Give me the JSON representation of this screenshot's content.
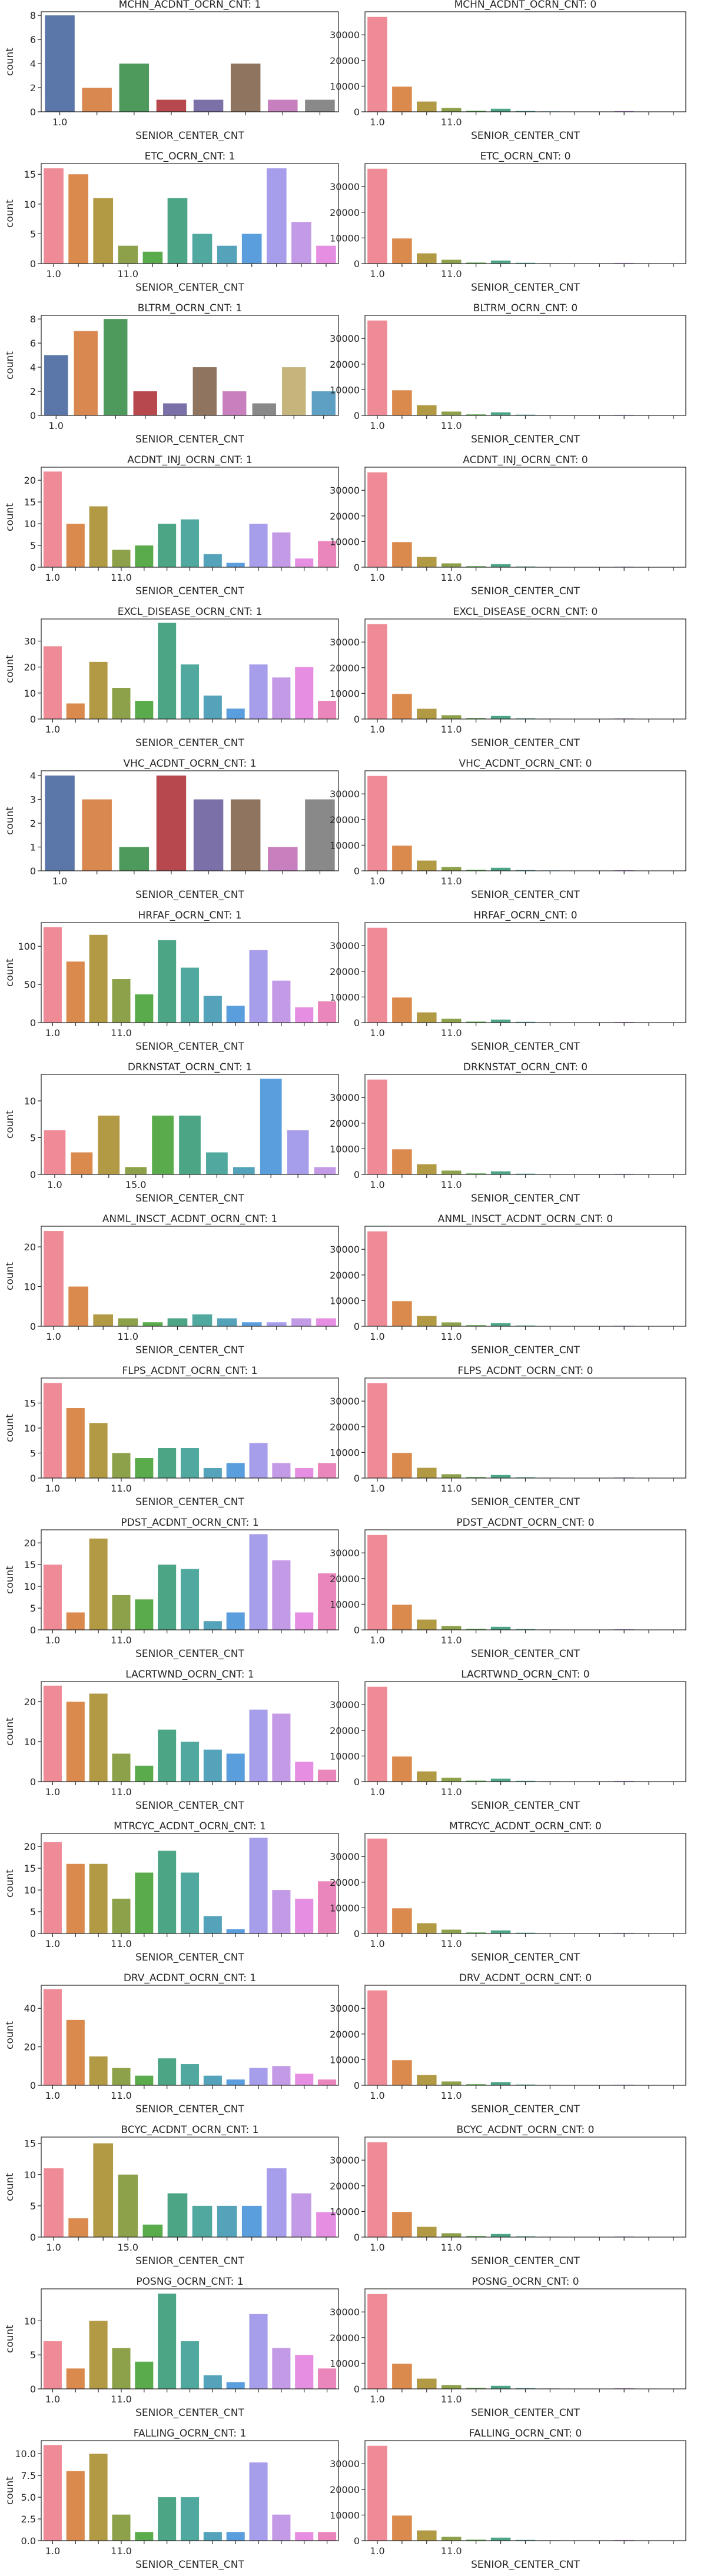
{
  "figure": {
    "xlabel": "SENIOR_CENTER_CNT",
    "ylabel": "count"
  },
  "chart_data": [
    {
      "type": "bar",
      "title": "MCHN_ACDNT_OCRN_CNT: 1",
      "xticks": [
        "1.0"
      ],
      "values": [
        8,
        2,
        4,
        1,
        1,
        4,
        1,
        1
      ],
      "colors": [
        "#5B76A8",
        "#D98950",
        "#4E9A5C",
        "#B7484D",
        "#7C70A8",
        "#8F7460",
        "#C77FBE",
        "#898989"
      ],
      "ylim": [
        0,
        8.3
      ],
      "yticks": [
        0,
        2,
        4,
        6,
        8
      ]
    },
    {
      "type": "bar",
      "title": "MCHN_ACDNT_OCRN_CNT: 0",
      "xticks": [
        "1.0",
        "11.0"
      ],
      "values": [
        37000,
        9800,
        4000,
        1500,
        400,
        1200,
        300,
        150,
        100,
        100,
        250,
        80,
        60
      ],
      "ylim": [
        0,
        39000
      ],
      "yticks": [
        0,
        10000,
        20000,
        30000
      ]
    },
    {
      "type": "bar",
      "title": "ETC_OCRN_CNT: 1",
      "xticks": [
        "1.0",
        "11.0"
      ],
      "values": [
        16,
        15,
        11,
        3,
        2,
        11,
        5,
        3,
        5,
        16,
        7,
        3
      ],
      "ylim": [
        0,
        16.8
      ],
      "yticks": [
        0,
        5,
        10,
        15
      ]
    },
    {
      "type": "bar",
      "title": "ETC_OCRN_CNT: 0",
      "xticks": [
        "1.0",
        "11.0"
      ],
      "values": [
        37000,
        9800,
        4000,
        1500,
        400,
        1200,
        300,
        150,
        100,
        100,
        250,
        80,
        60
      ],
      "ylim": [
        0,
        39000
      ],
      "yticks": [
        0,
        10000,
        20000,
        30000
      ]
    },
    {
      "type": "bar",
      "title": "BLTRM_OCRN_CNT: 1",
      "xticks": [
        "1.0"
      ],
      "values": [
        5,
        7,
        8,
        2,
        1,
        4,
        2,
        1,
        4,
        2
      ],
      "colors": [
        "#5B76A8",
        "#D98950",
        "#4E9A5C",
        "#B7484D",
        "#7C70A8",
        "#8F7460",
        "#C77FBE",
        "#898989",
        "#C5B47C",
        "#5DA0C3"
      ],
      "ylim": [
        0,
        8.3
      ],
      "yticks": [
        0,
        2,
        4,
        6,
        8
      ]
    },
    {
      "type": "bar",
      "title": "BLTRM_OCRN_CNT: 0",
      "xticks": [
        "1.0",
        "11.0"
      ],
      "values": [
        37000,
        9800,
        4000,
        1500,
        400,
        1200,
        300,
        150,
        100,
        100,
        250,
        80,
        60
      ],
      "ylim": [
        0,
        39000
      ],
      "yticks": [
        0,
        10000,
        20000,
        30000
      ]
    },
    {
      "type": "bar",
      "title": "ACDNT_INJ_OCRN_CNT: 1",
      "xticks": [
        "1.0",
        "11.0"
      ],
      "values": [
        22,
        10,
        14,
        4,
        5,
        10,
        11,
        3,
        1,
        10,
        8,
        2,
        6
      ],
      "ylim": [
        0,
        23
      ],
      "yticks": [
        0,
        5,
        10,
        15,
        20
      ]
    },
    {
      "type": "bar",
      "title": "ACDNT_INJ_OCRN_CNT: 0",
      "xticks": [
        "1.0",
        "11.0"
      ],
      "values": [
        37000,
        9800,
        4000,
        1500,
        400,
        1200,
        300,
        150,
        100,
        100,
        250,
        80,
        60
      ],
      "ylim": [
        0,
        39000
      ],
      "yticks": [
        0,
        10000,
        20000,
        30000
      ]
    },
    {
      "type": "bar",
      "title": "EXCL_DISEASE_OCRN_CNT: 1",
      "xticks": [
        "1.0"
      ],
      "values": [
        28,
        6,
        22,
        12,
        7,
        37,
        21,
        9,
        4,
        21,
        16,
        20,
        7
      ],
      "ylim": [
        0,
        38.5
      ],
      "yticks": [
        0,
        10,
        20,
        30
      ]
    },
    {
      "type": "bar",
      "title": "EXCL_DISEASE_OCRN_CNT: 0",
      "xticks": [
        "1.0",
        "11.0"
      ],
      "values": [
        37000,
        9800,
        4000,
        1500,
        400,
        1200,
        300,
        150,
        100,
        100,
        250,
        80,
        60
      ],
      "ylim": [
        0,
        39000
      ],
      "yticks": [
        0,
        10000,
        20000,
        30000
      ]
    },
    {
      "type": "bar",
      "title": "VHC_ACDNT_OCRN_CNT: 1",
      "xticks": [
        "1.0"
      ],
      "values": [
        4,
        3,
        1,
        4,
        3,
        3,
        1,
        3
      ],
      "colors": [
        "#5B76A8",
        "#D98950",
        "#4E9A5C",
        "#B7484D",
        "#7C70A8",
        "#8F7460",
        "#C77FBE",
        "#898989"
      ],
      "ylim": [
        0,
        4.2
      ],
      "yticks": [
        0,
        1,
        2,
        3,
        4
      ]
    },
    {
      "type": "bar",
      "title": "VHC_ACDNT_OCRN_CNT: 0",
      "xticks": [
        "1.0",
        "11.0"
      ],
      "values": [
        37000,
        9800,
        4000,
        1500,
        400,
        1200,
        300,
        150,
        100,
        100,
        250,
        80,
        60
      ],
      "ylim": [
        0,
        39000
      ],
      "yticks": [
        0,
        10000,
        20000,
        30000
      ]
    },
    {
      "type": "bar",
      "title": "HRFAF_OCRN_CNT: 1",
      "xticks": [
        "1.0",
        "11.0"
      ],
      "values": [
        125,
        80,
        115,
        57,
        37,
        108,
        72,
        35,
        22,
        95,
        55,
        20,
        28
      ],
      "ylim": [
        0,
        131
      ],
      "yticks": [
        0,
        50,
        100
      ]
    },
    {
      "type": "bar",
      "title": "HRFAF_OCRN_CNT: 0",
      "xticks": [
        "1.0",
        "11.0"
      ],
      "values": [
        37000,
        9800,
        4000,
        1500,
        400,
        1200,
        300,
        150,
        100,
        100,
        250,
        80,
        60
      ],
      "ylim": [
        0,
        39000
      ],
      "yticks": [
        0,
        10000,
        20000,
        30000
      ]
    },
    {
      "type": "bar",
      "title": "DRKNSTAT_OCRN_CNT: 1",
      "xticks": [
        "1.0",
        "15.0"
      ],
      "values": [
        6,
        3,
        8,
        1,
        8,
        8,
        3,
        1,
        13,
        6,
        1
      ],
      "ylim": [
        0,
        13.6
      ],
      "yticks": [
        0,
        5,
        10
      ]
    },
    {
      "type": "bar",
      "title": "DRKNSTAT_OCRN_CNT: 0",
      "xticks": [
        "1.0",
        "11.0"
      ],
      "values": [
        37000,
        9800,
        4000,
        1500,
        400,
        1200,
        300,
        150,
        100,
        100,
        250,
        80,
        60
      ],
      "ylim": [
        0,
        39000
      ],
      "yticks": [
        0,
        10000,
        20000,
        30000
      ]
    },
    {
      "type": "bar",
      "title": "ANML_INSCT_ACDNT_OCRN_CNT: 1",
      "xticks": [
        "1.0",
        "11.0"
      ],
      "values": [
        24,
        10,
        3,
        2,
        1,
        2,
        3,
        2,
        1,
        1,
        2,
        2
      ],
      "ylim": [
        0,
        25.2
      ],
      "yticks": [
        0,
        10,
        20
      ]
    },
    {
      "type": "bar",
      "title": "ANML_INSCT_ACDNT_OCRN_CNT: 0",
      "xticks": [
        "1.0",
        "11.0"
      ],
      "values": [
        37000,
        9800,
        4000,
        1500,
        400,
        1200,
        300,
        150,
        100,
        100,
        250,
        80,
        60
      ],
      "ylim": [
        0,
        39000
      ],
      "yticks": [
        0,
        10000,
        20000,
        30000
      ]
    },
    {
      "type": "bar",
      "title": "FLPS_ACDNT_OCRN_CNT: 1",
      "xticks": [
        "1.0",
        "11.0"
      ],
      "values": [
        19,
        14,
        11,
        5,
        4,
        6,
        6,
        2,
        3,
        7,
        3,
        2,
        3
      ],
      "ylim": [
        0,
        20
      ],
      "yticks": [
        0,
        5,
        10,
        15
      ]
    },
    {
      "type": "bar",
      "title": "FLPS_ACDNT_OCRN_CNT: 0",
      "xticks": [
        "1.0",
        "11.0"
      ],
      "values": [
        37000,
        9800,
        4000,
        1500,
        400,
        1200,
        300,
        150,
        100,
        100,
        250,
        80,
        60
      ],
      "ylim": [
        0,
        39000
      ],
      "yticks": [
        0,
        10000,
        20000,
        30000
      ]
    },
    {
      "type": "bar",
      "title": "PDST_ACDNT_OCRN_CNT: 1",
      "xticks": [
        "1.0",
        "11.0"
      ],
      "values": [
        15,
        4,
        21,
        8,
        7,
        15,
        14,
        2,
        4,
        22,
        16,
        4,
        13
      ],
      "ylim": [
        0,
        23
      ],
      "yticks": [
        0,
        5,
        10,
        15,
        20
      ]
    },
    {
      "type": "bar",
      "title": "PDST_ACDNT_OCRN_CNT: 0",
      "xticks": [
        "1.0",
        "11.0"
      ],
      "values": [
        37000,
        9800,
        4000,
        1500,
        400,
        1200,
        300,
        150,
        100,
        100,
        250,
        80,
        60
      ],
      "ylim": [
        0,
        39000
      ],
      "yticks": [
        0,
        10000,
        20000,
        30000
      ]
    },
    {
      "type": "bar",
      "title": "LACRTWND_OCRN_CNT: 1",
      "xticks": [
        "1.0",
        "11.0"
      ],
      "values": [
        24,
        20,
        22,
        7,
        4,
        13,
        10,
        8,
        7,
        18,
        17,
        5,
        3
      ],
      "ylim": [
        0,
        25
      ],
      "yticks": [
        0,
        10,
        20
      ]
    },
    {
      "type": "bar",
      "title": "LACRTWND_OCRN_CNT: 0",
      "xticks": [
        "1.0",
        "11.0"
      ],
      "values": [
        37000,
        9800,
        4000,
        1500,
        400,
        1200,
        300,
        150,
        100,
        100,
        250,
        80,
        60
      ],
      "ylim": [
        0,
        39000
      ],
      "yticks": [
        0,
        10000,
        20000,
        30000
      ]
    },
    {
      "type": "bar",
      "title": "MTRCYC_ACDNT_OCRN_CNT: 1",
      "xticks": [
        "1.0",
        "11.0"
      ],
      "values": [
        21,
        16,
        16,
        8,
        14,
        19,
        14,
        4,
        1,
        22,
        10,
        8,
        12
      ],
      "ylim": [
        0,
        23
      ],
      "yticks": [
        0,
        5,
        10,
        15,
        20
      ]
    },
    {
      "type": "bar",
      "title": "MTRCYC_ACDNT_OCRN_CNT: 0",
      "xticks": [
        "1.0",
        "11.0"
      ],
      "values": [
        37000,
        9800,
        4000,
        1500,
        400,
        1200,
        300,
        150,
        100,
        100,
        250,
        80,
        60
      ],
      "ylim": [
        0,
        39000
      ],
      "yticks": [
        0,
        10000,
        20000,
        30000
      ]
    },
    {
      "type": "bar",
      "title": "DRV_ACDNT_OCRN_CNT: 1",
      "xticks": [
        "1.0",
        "11.0"
      ],
      "values": [
        50,
        34,
        15,
        9,
        5,
        14,
        11,
        5,
        3,
        9,
        10,
        6,
        3
      ],
      "ylim": [
        0,
        52
      ],
      "yticks": [
        0,
        20,
        40
      ]
    },
    {
      "type": "bar",
      "title": "DRV_ACDNT_OCRN_CNT: 0",
      "xticks": [
        "1.0",
        "11.0"
      ],
      "values": [
        37000,
        9800,
        4000,
        1500,
        400,
        1200,
        300,
        150,
        100,
        100,
        250,
        80,
        60
      ],
      "ylim": [
        0,
        39000
      ],
      "yticks": [
        0,
        10000,
        20000,
        30000
      ]
    },
    {
      "type": "bar",
      "title": "BCYC_ACDNT_OCRN_CNT: 1",
      "xticks": [
        "1.0",
        "15.0"
      ],
      "values": [
        11,
        3,
        15,
        10,
        2,
        7,
        5,
        5,
        5,
        11,
        7,
        4
      ],
      "ylim": [
        0,
        16
      ],
      "yticks": [
        0,
        5,
        10,
        15
      ]
    },
    {
      "type": "bar",
      "title": "BCYC_ACDNT_OCRN_CNT: 0",
      "xticks": [
        "1.0",
        "11.0"
      ],
      "values": [
        37000,
        9800,
        4000,
        1500,
        400,
        1200,
        300,
        150,
        100,
        100,
        250,
        80,
        60
      ],
      "ylim": [
        0,
        39000
      ],
      "yticks": [
        0,
        10000,
        20000,
        30000
      ]
    },
    {
      "type": "bar",
      "title": "POSNG_OCRN_CNT: 1",
      "xticks": [
        "1.0",
        "11.0"
      ],
      "values": [
        7,
        3,
        10,
        6,
        4,
        14,
        7,
        2,
        1,
        11,
        6,
        5,
        3
      ],
      "ylim": [
        0,
        14.7
      ],
      "yticks": [
        0,
        5,
        10
      ]
    },
    {
      "type": "bar",
      "title": "POSNG_OCRN_CNT: 0",
      "xticks": [
        "1.0",
        "11.0"
      ],
      "values": [
        37000,
        9800,
        4000,
        1500,
        400,
        1200,
        300,
        150,
        100,
        100,
        250,
        80,
        60
      ],
      "ylim": [
        0,
        39000
      ],
      "yticks": [
        0,
        10000,
        20000,
        30000
      ]
    },
    {
      "type": "bar",
      "title": "FALLING_OCRN_CNT: 1",
      "xticks": [
        "1.0",
        "11.0"
      ],
      "values": [
        11,
        8,
        10,
        3,
        1,
        5,
        5,
        1,
        1,
        9,
        3,
        1,
        1
      ],
      "ylim": [
        0,
        11.5
      ],
      "yticks": [
        "0.0",
        "2.5",
        "5.0",
        "7.5",
        "10.0"
      ]
    },
    {
      "type": "bar",
      "title": "FALLING_OCRN_CNT: 0",
      "xticks": [
        "1.0",
        "11.0"
      ],
      "values": [
        37000,
        9800,
        4000,
        1500,
        400,
        1200,
        300,
        150,
        100,
        100,
        250,
        80,
        60
      ],
      "ylim": [
        0,
        39000
      ],
      "yticks": [
        0,
        10000,
        20000,
        30000
      ]
    }
  ]
}
